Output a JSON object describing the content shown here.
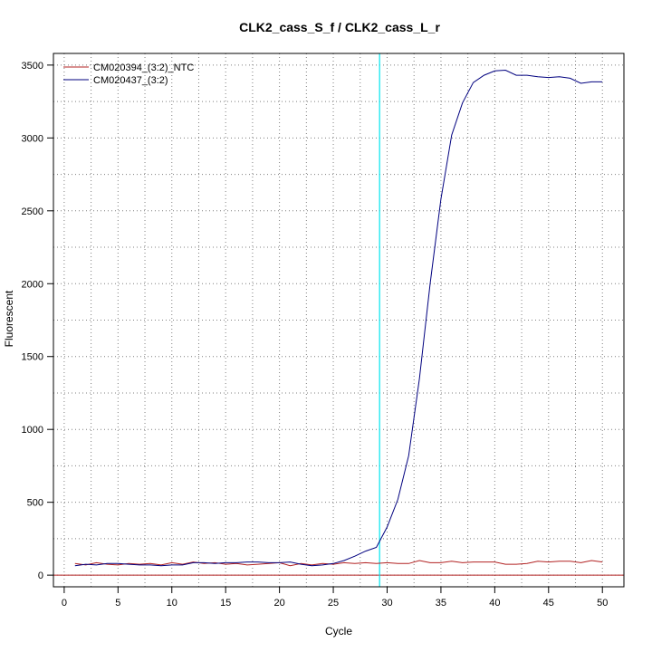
{
  "chart_data": {
    "type": "line",
    "title": "CLK2_cass_S_f / CLK2_cass_L_r",
    "xlabel": "Cycle",
    "ylabel": "Fluorescent",
    "xlim": [
      -1,
      52
    ],
    "ylim": [
      -80,
      3580
    ],
    "xticks": [
      0,
      5,
      10,
      15,
      20,
      25,
      30,
      35,
      40,
      45,
      50
    ],
    "yticks": [
      0,
      500,
      1000,
      1500,
      2000,
      2500,
      3000,
      3500
    ],
    "x_grid": [
      2.5,
      7.5,
      12.5,
      17.5,
      22.5,
      27.5,
      32.5,
      37.5,
      42.5,
      47.5
    ],
    "y_grid": [
      250,
      750,
      1250,
      1750,
      2250,
      2750,
      3250
    ],
    "grid": true,
    "legend_position": "top-left",
    "threshold_line": {
      "axis": "x",
      "value": 29.3,
      "color": "#00e5ee"
    },
    "baseline": {
      "axis": "y",
      "value": 0,
      "color": "#b22222"
    },
    "series": [
      {
        "name": "CM020394_(3:2)_NTC",
        "color": "#b22222",
        "x": [
          1,
          2,
          3,
          4,
          5,
          6,
          7,
          8,
          9,
          10,
          11,
          12,
          13,
          14,
          15,
          16,
          17,
          18,
          19,
          20,
          21,
          22,
          23,
          24,
          25,
          26,
          27,
          28,
          29,
          30,
          31,
          32,
          33,
          34,
          35,
          36,
          37,
          38,
          39,
          40,
          41,
          42,
          43,
          44,
          45,
          46,
          47,
          48,
          49,
          50
        ],
        "values": [
          80,
          70,
          85,
          75,
          70,
          80,
          75,
          80,
          70,
          85,
          75,
          90,
          80,
          85,
          75,
          80,
          70,
          75,
          80,
          85,
          65,
          80,
          70,
          80,
          75,
          85,
          80,
          85,
          80,
          85,
          80,
          80,
          100,
          85,
          85,
          95,
          85,
          90,
          90,
          90,
          75,
          75,
          80,
          95,
          90,
          95,
          95,
          85,
          100,
          90
        ]
      },
      {
        "name": "CM020437_(3:2)",
        "color": "#00007f",
        "x": [
          1,
          2,
          3,
          4,
          5,
          6,
          7,
          8,
          9,
          10,
          11,
          12,
          13,
          14,
          15,
          16,
          17,
          18,
          19,
          20,
          21,
          22,
          23,
          24,
          25,
          26,
          27,
          28,
          29,
          30,
          31,
          32,
          33,
          34,
          35,
          36,
          37,
          38,
          39,
          40,
          41,
          42,
          43,
          44,
          45,
          46,
          47,
          48,
          49,
          50
        ],
        "values": [
          65,
          75,
          70,
          80,
          80,
          75,
          70,
          70,
          65,
          70,
          70,
          85,
          85,
          80,
          85,
          85,
          90,
          90,
          85,
          85,
          90,
          75,
          65,
          70,
          80,
          100,
          130,
          165,
          190,
          330,
          520,
          820,
          1350,
          2000,
          2580,
          3020,
          3240,
          3380,
          3430,
          3460,
          3465,
          3430,
          3430,
          3420,
          3415,
          3420,
          3410,
          3375,
          3385,
          3385
        ]
      }
    ]
  }
}
